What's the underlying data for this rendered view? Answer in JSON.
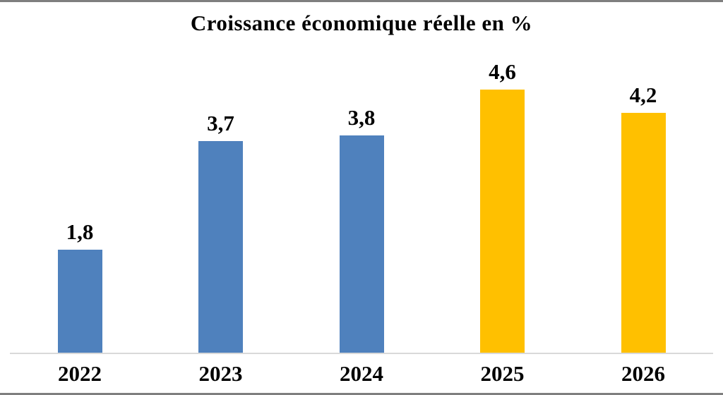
{
  "chart_data": {
    "type": "bar",
    "title": "Croissance économique réelle en %",
    "categories": [
      "2022",
      "2023",
      "2024",
      "2025",
      "2026"
    ],
    "values": [
      1.8,
      3.7,
      3.8,
      4.6,
      4.2
    ],
    "value_labels": [
      "1,8",
      "3,7",
      "3,8",
      "4,6",
      "4,2"
    ],
    "bar_colors": [
      "#4F81BD",
      "#4F81BD",
      "#4F81BD",
      "#FFC000",
      "#FFC000"
    ],
    "xlabel": "",
    "ylabel": "",
    "ylim": [
      0,
      5
    ],
    "grid": false,
    "legend": "none",
    "decimal_separator": ",",
    "colors": {
      "blue_bar": "#4F81BD",
      "gold_bar": "#FFC000",
      "axis_line": "#D9D9D9",
      "frame_border": "#7F7F7F",
      "text": "#000000",
      "background": "#FFFFFF"
    }
  }
}
